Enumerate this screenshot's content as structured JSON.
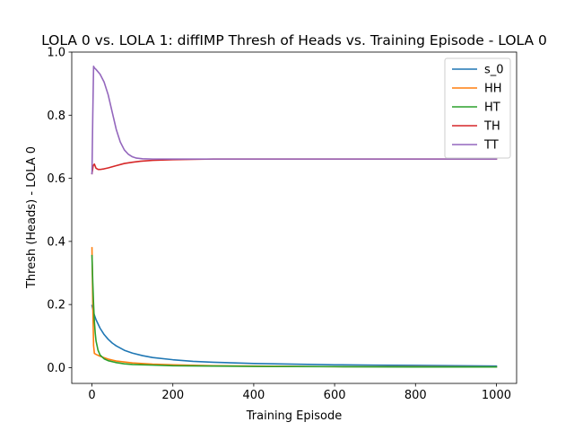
{
  "chart_data": {
    "type": "line",
    "title": "LOLA 0 vs. LOLA 1: diffIMP Thresh of Heads vs. Training Episode - LOLA 0",
    "xlabel": "Training Episode",
    "ylabel": "Thresh (Heads) - LOLA 0",
    "xlim": [
      -50,
      1050
    ],
    "ylim": [
      -0.05,
      1.0
    ],
    "xticks": [
      0,
      200,
      400,
      600,
      800,
      1000
    ],
    "yticks": [
      0.0,
      0.2,
      0.4,
      0.6,
      0.8,
      1.0
    ],
    "grid": false,
    "legend_position": "top-right",
    "series": [
      {
        "name": "s_0",
        "color": "#1f77b4",
        "x": [
          0,
          5,
          10,
          20,
          30,
          40,
          50,
          60,
          80,
          100,
          125,
          150,
          200,
          250,
          300,
          400,
          500,
          600,
          700,
          800,
          900,
          1000
        ],
        "y": [
          0.197,
          0.17,
          0.152,
          0.125,
          0.105,
          0.09,
          0.078,
          0.069,
          0.055,
          0.046,
          0.038,
          0.032,
          0.025,
          0.02,
          0.017,
          0.013,
          0.011,
          0.009,
          0.008,
          0.007,
          0.006,
          0.005
        ]
      },
      {
        "name": "HH",
        "color": "#ff7f0e",
        "x": [
          0,
          2,
          4,
          6,
          10,
          20,
          40,
          60,
          100,
          150,
          200,
          300,
          400,
          600,
          800,
          1000
        ],
        "y": [
          0.38,
          0.2,
          0.07,
          0.045,
          0.042,
          0.036,
          0.027,
          0.021,
          0.015,
          0.011,
          0.009,
          0.006,
          0.005,
          0.003,
          0.003,
          0.002
        ]
      },
      {
        "name": "HT",
        "color": "#2ca02c",
        "x": [
          0,
          2,
          4,
          6,
          8,
          10,
          15,
          20,
          30,
          40,
          60,
          80,
          100,
          150,
          200,
          300,
          400,
          600,
          800,
          1000
        ],
        "y": [
          0.355,
          0.27,
          0.2,
          0.145,
          0.11,
          0.085,
          0.055,
          0.04,
          0.028,
          0.022,
          0.016,
          0.012,
          0.01,
          0.008,
          0.006,
          0.005,
          0.004,
          0.003,
          0.002,
          0.002
        ]
      },
      {
        "name": "TH",
        "color": "#d62728",
        "x": [
          0,
          3,
          6,
          10,
          15,
          20,
          30,
          40,
          60,
          80,
          100,
          120,
          150,
          200,
          250,
          300,
          400,
          500,
          600,
          700,
          800,
          900,
          1000
        ],
        "y": [
          0.615,
          0.64,
          0.645,
          0.632,
          0.628,
          0.628,
          0.63,
          0.633,
          0.64,
          0.647,
          0.651,
          0.654,
          0.657,
          0.659,
          0.66,
          0.661,
          0.661,
          0.661,
          0.661,
          0.661,
          0.661,
          0.661,
          0.661
        ]
      },
      {
        "name": "TT",
        "color": "#9467bd",
        "x": [
          0,
          2,
          4,
          6,
          10,
          20,
          30,
          40,
          50,
          60,
          70,
          80,
          90,
          100,
          110,
          125,
          150,
          200,
          300,
          400,
          500,
          600,
          700,
          800,
          900,
          1000
        ],
        "y": [
          0.615,
          0.8,
          0.955,
          0.95,
          0.945,
          0.93,
          0.905,
          0.865,
          0.81,
          0.755,
          0.715,
          0.69,
          0.676,
          0.668,
          0.664,
          0.662,
          0.661,
          0.661,
          0.661,
          0.661,
          0.661,
          0.661,
          0.661,
          0.661,
          0.661,
          0.661
        ]
      }
    ]
  }
}
